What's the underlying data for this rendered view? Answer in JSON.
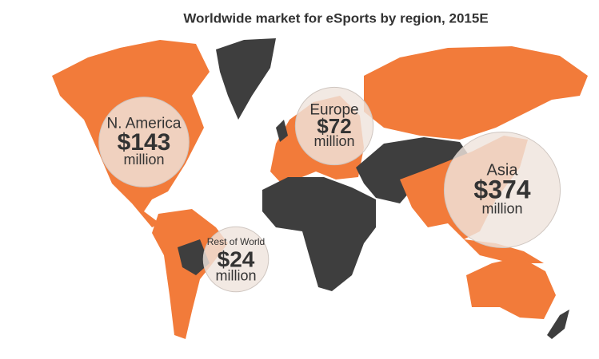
{
  "chart_data": {
    "type": "bubble-map",
    "title": "Worldwide market for eSports by region, 2015E",
    "regions": [
      "N. America",
      "Europe",
      "Asia",
      "Rest of World"
    ],
    "values": [
      143,
      72,
      374,
      24
    ],
    "value_labels": [
      "$143",
      "$72",
      "$374",
      "$24"
    ],
    "unit": "million",
    "colors": {
      "highlight": "#f27b3a",
      "other": "#3e3e3e",
      "bubble": "#efe4dd"
    }
  }
}
